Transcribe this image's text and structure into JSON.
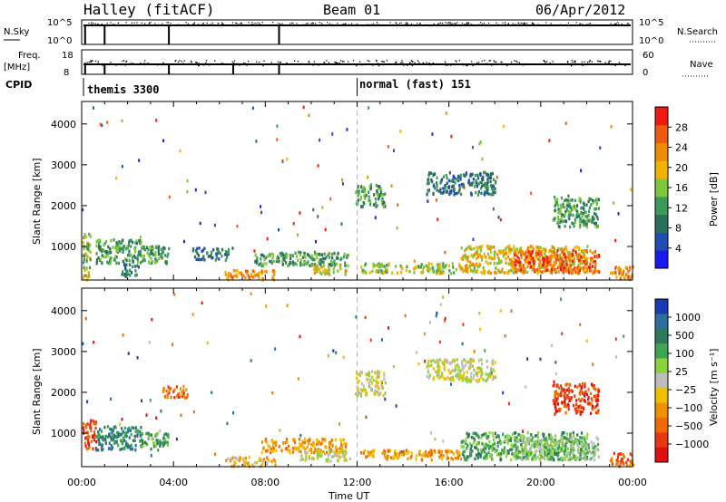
{
  "header": {
    "station": "Halley (fitACF)",
    "beam": "Beam 01",
    "date": "06/Apr/2012"
  },
  "strip1": {
    "left_label": "N.Sky",
    "left_ticks": [
      "10^5",
      "10^0"
    ],
    "right_label": "N.Search",
    "right_ticks": [
      "10^5",
      "10^0"
    ]
  },
  "strip2": {
    "left_label": "Freq.",
    "left_unit": "[MHz]",
    "left_ticks": [
      "18",
      "8"
    ],
    "right_label": "Nave",
    "right_ticks": [
      "60",
      "0"
    ]
  },
  "cpid": {
    "label": "CPID",
    "segments": [
      "themis 3300",
      "normal (fast) 151"
    ],
    "change_hour": 12.0
  },
  "axes": {
    "xlabel": "Time UT",
    "x_ticks": [
      "00:00",
      "04:00",
      "08:00",
      "12:00",
      "16:00",
      "20:00",
      "00:00"
    ],
    "ylabel": "Slant Range [km]",
    "y_ticks": [
      "1000",
      "2000",
      "3000",
      "4000"
    ]
  },
  "power_scale": {
    "label": "Power [dB]",
    "ticks": [
      "4",
      "8",
      "12",
      "16",
      "20",
      "24",
      "28"
    ],
    "colors": [
      "#1a1aee",
      "#234bb4",
      "#2c6e5c",
      "#3c9a5a",
      "#7dc53a",
      "#f0b400",
      "#f08a00",
      "#ee5a10",
      "#ee1a10"
    ]
  },
  "velocity_scale": {
    "label": "Velocity [m s⁻¹]",
    "ticks": [
      "1000",
      "500",
      "100",
      "25",
      "−25",
      "−100",
      "−500",
      "−1000"
    ],
    "colors": [
      "#1a3ab4",
      "#2c6e9c",
      "#2c7a5a",
      "#3ca650",
      "#8cd23c",
      "#bdbdbd",
      "#f0c000",
      "#f09000",
      "#f06a00",
      "#e83810",
      "#e01010"
    ]
  },
  "chart_data": {
    "type": "heatmap",
    "x_range_hours": [
      0,
      24
    ],
    "y_range_km": [
      180,
      4550
    ],
    "panels": [
      {
        "name": "Power",
        "clusters": [
          {
            "t0": 0.0,
            "t1": 0.35,
            "r0": 220,
            "r1": 1350,
            "level": 4
          },
          {
            "t0": 0.6,
            "t1": 2.6,
            "r0": 620,
            "r1": 1200,
            "level": 3
          },
          {
            "t0": 1.7,
            "t1": 2.5,
            "r0": 300,
            "r1": 600,
            "level": 2
          },
          {
            "t0": 2.5,
            "t1": 3.8,
            "r0": 620,
            "r1": 1050,
            "level": 3
          },
          {
            "t0": 4.8,
            "t1": 6.4,
            "r0": 700,
            "r1": 1000,
            "level": 2
          },
          {
            "t0": 6.2,
            "t1": 8.4,
            "r0": 220,
            "r1": 450,
            "level": 6
          },
          {
            "t0": 7.5,
            "t1": 11.6,
            "r0": 560,
            "r1": 900,
            "level": 3
          },
          {
            "t0": 10.0,
            "t1": 11.5,
            "r0": 350,
            "r1": 560,
            "level": 5
          },
          {
            "t0": 11.9,
            "t1": 13.2,
            "r0": 2000,
            "r1": 2550,
            "level": 3
          },
          {
            "t0": 12.1,
            "t1": 16.5,
            "r0": 380,
            "r1": 620,
            "level": 4
          },
          {
            "t0": 15.0,
            "t1": 18.0,
            "r0": 2300,
            "r1": 2850,
            "level": 2
          },
          {
            "t0": 16.5,
            "t1": 22.0,
            "r0": 380,
            "r1": 1050,
            "level": 5
          },
          {
            "t0": 18.8,
            "t1": 22.5,
            "r0": 380,
            "r1": 950,
            "level": 7
          },
          {
            "t0": 20.5,
            "t1": 22.5,
            "r0": 1500,
            "r1": 2250,
            "level": 3
          },
          {
            "t0": 23.0,
            "t1": 24.0,
            "r0": 220,
            "r1": 550,
            "level": 6
          }
        ]
      },
      {
        "name": "Velocity",
        "clusters": [
          {
            "t0": 0.0,
            "t1": 0.6,
            "r0": 650,
            "r1": 1350,
            "level": 9
          },
          {
            "t0": 0.6,
            "t1": 2.6,
            "r0": 620,
            "r1": 1200,
            "level": 2
          },
          {
            "t0": 2.5,
            "t1": 3.8,
            "r0": 620,
            "r1": 1050,
            "level": 3
          },
          {
            "t0": 3.5,
            "t1": 4.6,
            "r0": 1900,
            "r1": 2200,
            "level": 8
          },
          {
            "t0": 6.2,
            "t1": 8.4,
            "r0": 220,
            "r1": 450,
            "level": 6
          },
          {
            "t0": 7.8,
            "t1": 11.5,
            "r0": 560,
            "r1": 900,
            "level": 7
          },
          {
            "t0": 9.5,
            "t1": 11.7,
            "r0": 350,
            "r1": 620,
            "level": 5
          },
          {
            "t0": 11.9,
            "t1": 13.2,
            "r0": 1950,
            "r1": 2550,
            "level": 5
          },
          {
            "t0": 12.1,
            "t1": 16.5,
            "r0": 380,
            "r1": 620,
            "level": 7
          },
          {
            "t0": 15.0,
            "t1": 18.0,
            "r0": 2300,
            "r1": 2850,
            "level": 5
          },
          {
            "t0": 16.5,
            "t1": 22.0,
            "r0": 380,
            "r1": 1050,
            "level": 3
          },
          {
            "t0": 18.8,
            "t1": 22.5,
            "r0": 380,
            "r1": 950,
            "level": 4
          },
          {
            "t0": 20.5,
            "t1": 22.5,
            "r0": 1500,
            "r1": 2250,
            "level": 9
          },
          {
            "t0": 23.0,
            "t1": 24.0,
            "r0": 220,
            "r1": 550,
            "level": 8
          }
        ]
      }
    ]
  }
}
